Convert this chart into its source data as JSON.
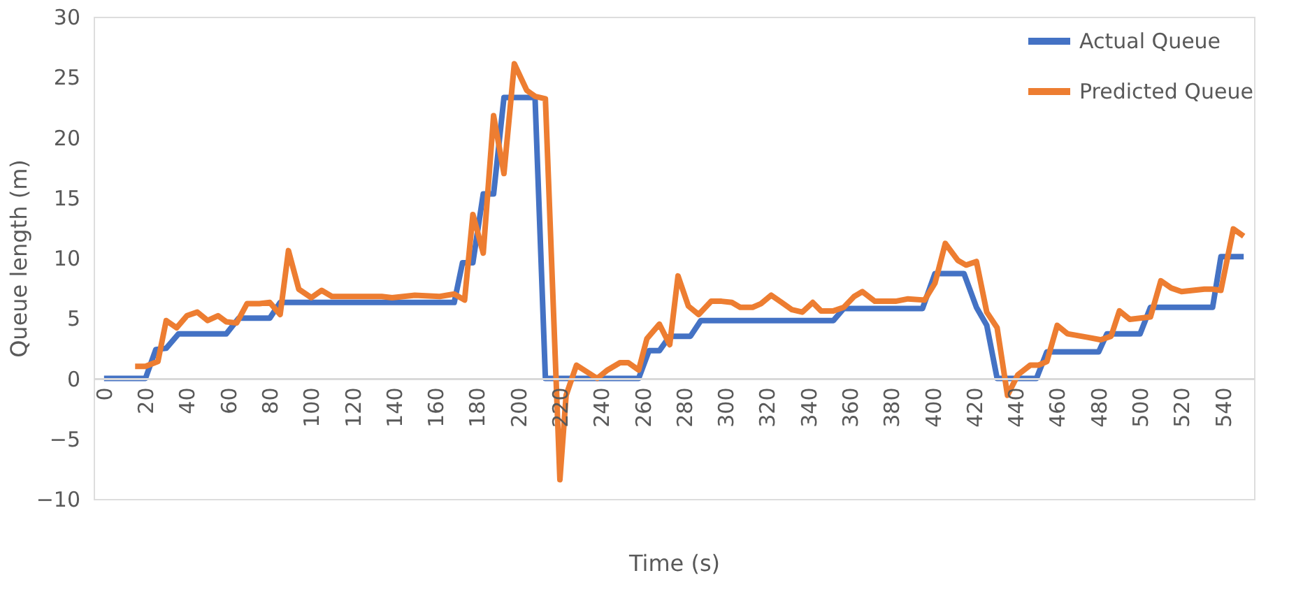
{
  "chart_data": {
    "type": "line",
    "xlabel": "Time (s)",
    "ylabel": "Queue length  (m)",
    "xlim": [
      -5,
      555
    ],
    "xticks": [
      0,
      20,
      40,
      60,
      80,
      100,
      120,
      140,
      160,
      180,
      200,
      220,
      240,
      260,
      280,
      300,
      320,
      340,
      360,
      380,
      400,
      420,
      440,
      460,
      480,
      500,
      520,
      540
    ],
    "ylim": [
      -10,
      30
    ],
    "yticks": [
      -10,
      -5,
      0,
      5,
      10,
      15,
      20,
      25,
      30
    ],
    "grid": false,
    "legend": "top right",
    "marker": "none",
    "line_style": "solid",
    "series": [
      {
        "name": "Actual Queue",
        "color": "#4472c4",
        "x": [
          0,
          20,
          25,
          30,
          36,
          59,
          65,
          80,
          85,
          169,
          173,
          178,
          183,
          188,
          193,
          208,
          213,
          258,
          263,
          268,
          273,
          283,
          288,
          352,
          357,
          395,
          401,
          415,
          421,
          426,
          431,
          450,
          455,
          480,
          484,
          500,
          505,
          535,
          539,
          550
        ],
        "values": [
          0,
          0,
          2.4,
          2.5,
          3.7,
          3.7,
          5.0,
          5.0,
          6.3,
          6.3,
          9.6,
          9.6,
          15.3,
          15.3,
          23.3,
          23.3,
          0,
          0,
          2.3,
          2.3,
          3.5,
          3.5,
          4.8,
          4.8,
          5.8,
          5.8,
          8.7,
          8.7,
          5.9,
          4.4,
          0,
          0,
          2.2,
          2.2,
          3.7,
          3.7,
          5.9,
          5.9,
          10.1,
          10.1
        ]
      },
      {
        "name": "Predicted Queue",
        "color": "#ed7d31",
        "x": [
          15,
          20,
          26,
          30,
          35,
          40,
          45,
          50,
          55,
          59,
          64,
          69,
          75,
          80,
          85,
          89,
          94,
          100,
          105,
          110,
          134,
          139,
          150,
          162,
          169,
          174,
          178,
          183,
          188,
          193,
          198,
          204,
          208,
          213,
          220,
          223,
          228,
          238,
          243,
          249,
          253,
          258,
          262,
          268,
          273,
          277,
          282,
          287,
          293,
          298,
          303,
          307,
          313,
          317,
          322,
          327,
          332,
          337,
          342,
          346,
          352,
          357,
          362,
          366,
          372,
          382,
          388,
          396,
          401,
          406,
          412,
          416,
          421,
          426,
          431,
          436,
          441,
          447,
          451,
          455,
          460,
          465,
          475,
          481,
          486,
          490,
          495,
          505,
          510,
          515,
          520,
          531,
          535,
          539,
          545,
          550
        ],
        "values": [
          1.0,
          1.0,
          1.4,
          4.8,
          4.2,
          5.2,
          5.5,
          4.8,
          5.2,
          4.7,
          4.6,
          6.2,
          6.2,
          6.3,
          5.3,
          10.6,
          7.4,
          6.7,
          7.3,
          6.8,
          6.8,
          6.7,
          6.9,
          6.8,
          7.0,
          6.5,
          13.6,
          10.4,
          21.8,
          17.0,
          26.1,
          23.9,
          23.4,
          23.2,
          -8.4,
          -1.4,
          1.1,
          0,
          0.7,
          1.3,
          1.3,
          0.7,
          3.3,
          4.5,
          2.8,
          8.5,
          6.0,
          5.3,
          6.4,
          6.4,
          6.3,
          5.9,
          5.9,
          6.2,
          6.9,
          6.3,
          5.7,
          5.5,
          6.3,
          5.6,
          5.6,
          5.9,
          6.8,
          7.2,
          6.4,
          6.4,
          6.6,
          6.5,
          7.9,
          11.2,
          9.8,
          9.4,
          9.7,
          5.5,
          4.2,
          -1.4,
          0.3,
          1.1,
          1.1,
          1.4,
          4.4,
          3.7,
          3.4,
          3.2,
          3.5,
          5.6,
          4.9,
          5.1,
          8.1,
          7.5,
          7.2,
          7.4,
          7.4,
          7.3,
          12.4,
          11.8
        ]
      }
    ]
  }
}
